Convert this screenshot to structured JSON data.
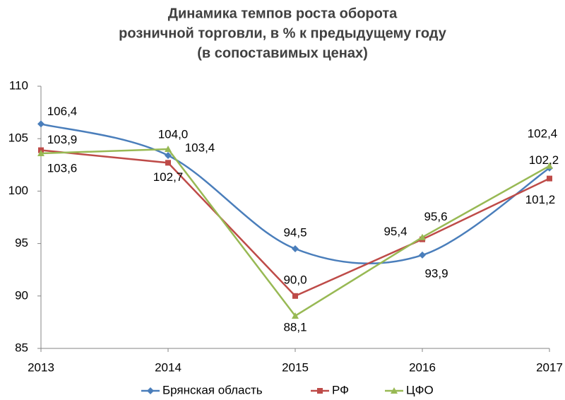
{
  "chart_data": {
    "type": "line",
    "title": [
      "Динамика темпов роста оборота",
      "розничной торговли, в % к предыдущему году",
      "(в сопоставимых ценах)"
    ],
    "categories": [
      "2013",
      "2014",
      "2015",
      "2016",
      "2017"
    ],
    "series": [
      {
        "name": "Брянская область",
        "color": "#4a7ebb",
        "marker": "diamond",
        "smooth": true,
        "values": [
          106.4,
          103.4,
          94.5,
          93.9,
          102.2
        ],
        "value_labels": [
          "106,4",
          "103,4",
          "94,5",
          "93,9",
          "102,2"
        ]
      },
      {
        "name": "РФ",
        "color": "#be4b48",
        "marker": "square",
        "smooth": false,
        "values": [
          103.9,
          102.7,
          90.0,
          95.4,
          101.2
        ],
        "value_labels": [
          "103,9",
          "102,7",
          "90,0",
          "95,4",
          "101,2"
        ]
      },
      {
        "name": "ЦФО",
        "color": "#98b954",
        "marker": "triangle",
        "smooth": false,
        "values": [
          103.6,
          104.0,
          88.1,
          95.6,
          102.4
        ],
        "value_labels": [
          "103,6",
          "104,0",
          "88,1",
          "95,6",
          "102,4"
        ]
      }
    ],
    "ylim": [
      85,
      110
    ],
    "yticks": [
      85,
      90,
      95,
      100,
      105,
      110
    ],
    "grid": false,
    "legend": "bottom"
  }
}
